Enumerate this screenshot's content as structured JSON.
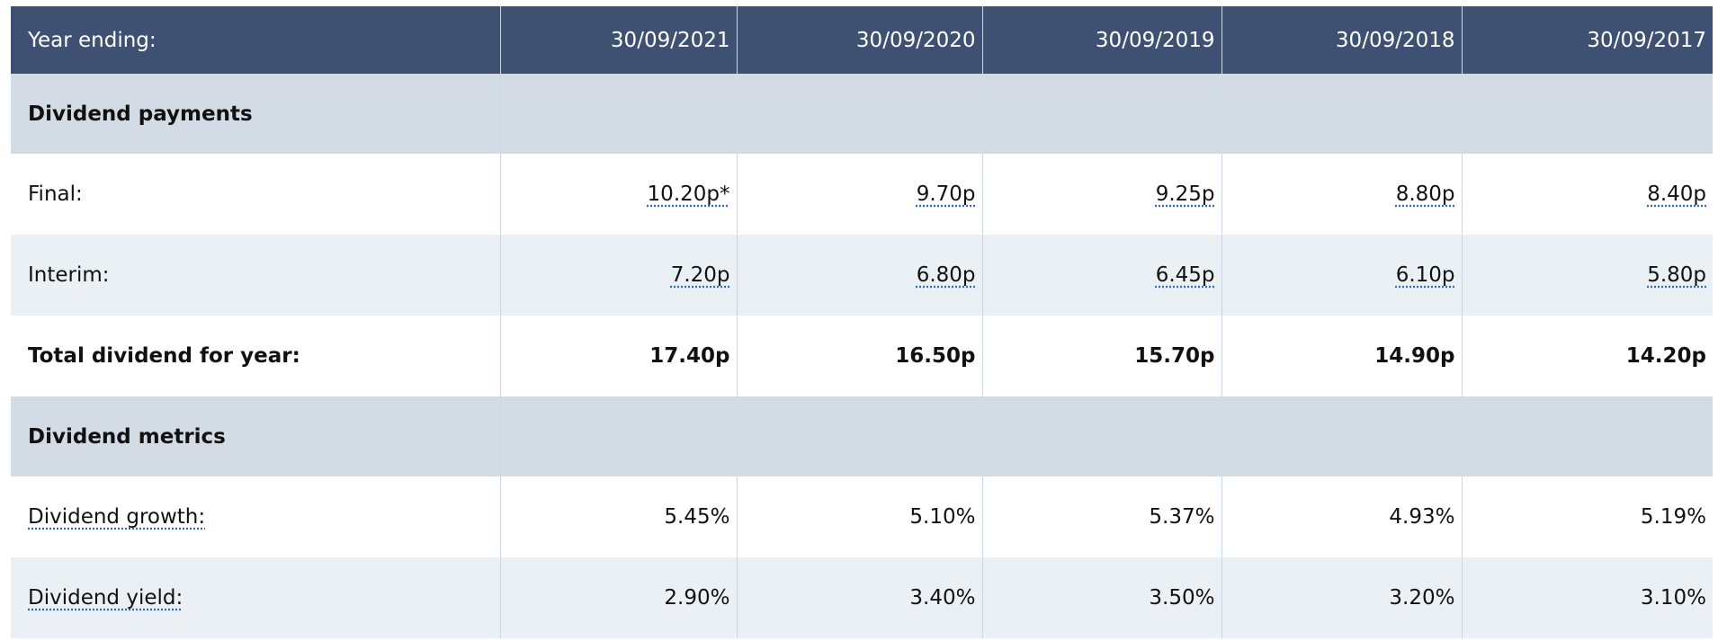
{
  "table": {
    "header": [
      "Year ending:",
      "30/09/2021",
      "30/09/2020",
      "30/09/2019",
      "30/09/2018",
      "30/09/2017"
    ],
    "sections": [
      {
        "title": "Dividend payments",
        "rows": [
          {
            "label": "Final:",
            "cells": [
              "10.20p*",
              "9.70p",
              "9.25p",
              "8.80p",
              "8.40p"
            ]
          },
          {
            "label": "Interim:",
            "cells": [
              "7.20p",
              "6.80p",
              "6.45p",
              "6.10p",
              "5.80p"
            ]
          },
          {
            "label": "Total dividend for year:",
            "cells": [
              "17.40p",
              "16.50p",
              "15.70p",
              "14.90p",
              "14.20p"
            ]
          }
        ]
      },
      {
        "title": "Dividend metrics",
        "rows": [
          {
            "label": "Dividend growth:",
            "cells": [
              "5.45%",
              "5.10%",
              "5.37%",
              "4.93%",
              "5.19%"
            ]
          },
          {
            "label": "Dividend yield:",
            "cells": [
              "2.90%",
              "3.40%",
              "3.50%",
              "3.20%",
              "3.10%"
            ]
          }
        ]
      }
    ]
  }
}
